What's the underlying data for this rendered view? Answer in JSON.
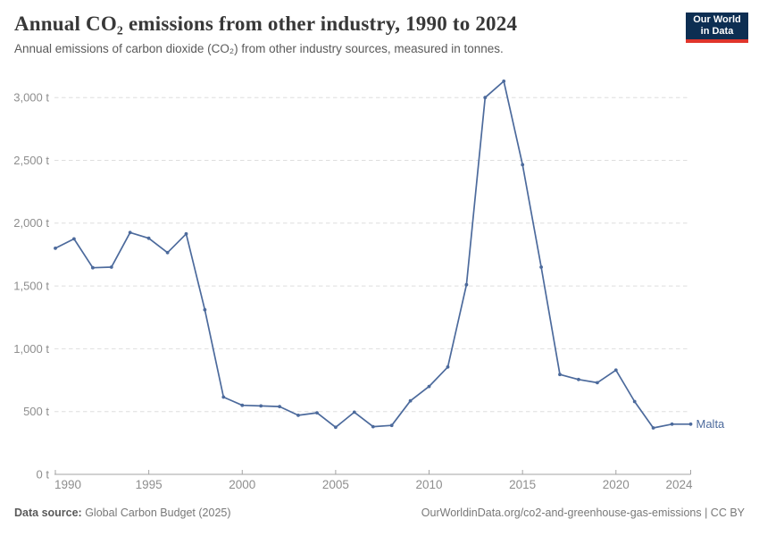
{
  "header": {
    "title": "Annual CO₂ emissions from other industry, 1990 to 2024",
    "subtitle": "Annual emissions of carbon dioxide (CO₂) from other industry sources, measured in tonnes."
  },
  "logo": {
    "line1": "Our World",
    "line2": "in Data"
  },
  "footer": {
    "source_label": "Data source:",
    "source_text": " Global Carbon Budget (2025)",
    "right_text": "OurWorldinData.org/co2-and-greenhouse-gas-emissions | CC BY"
  },
  "chart_data": {
    "type": "line",
    "title": "Annual CO₂ emissions from other industry, 1990 to 2024",
    "xlabel": "",
    "ylabel": "tonnes",
    "xlim": [
      1990,
      2024
    ],
    "ylim": [
      0,
      3000
    ],
    "grid": "horizontal-dashed",
    "legend_position": "end-of-line-label",
    "colors": {
      "line": "#4C6A9C",
      "grid": "#dedede",
      "axis": "#a3a3a3",
      "tick_text": "#8e8e8e"
    },
    "x_ticks": [
      {
        "value": 1990,
        "label": "1990"
      },
      {
        "value": 1995,
        "label": "1995"
      },
      {
        "value": 2000,
        "label": "2000"
      },
      {
        "value": 2005,
        "label": "2005"
      },
      {
        "value": 2010,
        "label": "2010"
      },
      {
        "value": 2015,
        "label": "2015"
      },
      {
        "value": 2020,
        "label": "2020"
      },
      {
        "value": 2024,
        "label": "2024"
      }
    ],
    "y_ticks": [
      {
        "value": 0,
        "label": "0 t"
      },
      {
        "value": 500,
        "label": "500 t"
      },
      {
        "value": 1000,
        "label": "1,000 t"
      },
      {
        "value": 1500,
        "label": "1,500 t"
      },
      {
        "value": 2000,
        "label": "2,000 t"
      },
      {
        "value": 2500,
        "label": "2,500 t"
      },
      {
        "value": 3000,
        "label": "3,000 t"
      }
    ],
    "series": [
      {
        "name": "Malta",
        "color": "#4C6A9C",
        "x": [
          1990,
          1991,
          1992,
          1993,
          1994,
          1995,
          1996,
          1997,
          1998,
          1999,
          2000,
          2001,
          2002,
          2003,
          2004,
          2005,
          2006,
          2007,
          2008,
          2009,
          2010,
          2011,
          2012,
          2013,
          2014,
          2015,
          2016,
          2017,
          2018,
          2019,
          2020,
          2021,
          2022,
          2023,
          2024
        ],
        "values": [
          1800,
          1875,
          1645,
          1650,
          1925,
          1880,
          1765,
          1915,
          1310,
          615,
          550,
          545,
          540,
          470,
          490,
          375,
          495,
          380,
          390,
          585,
          700,
          855,
          1510,
          3000,
          3130,
          2465,
          1650,
          795,
          755,
          730,
          830,
          580,
          370,
          400,
          400
        ]
      }
    ]
  }
}
